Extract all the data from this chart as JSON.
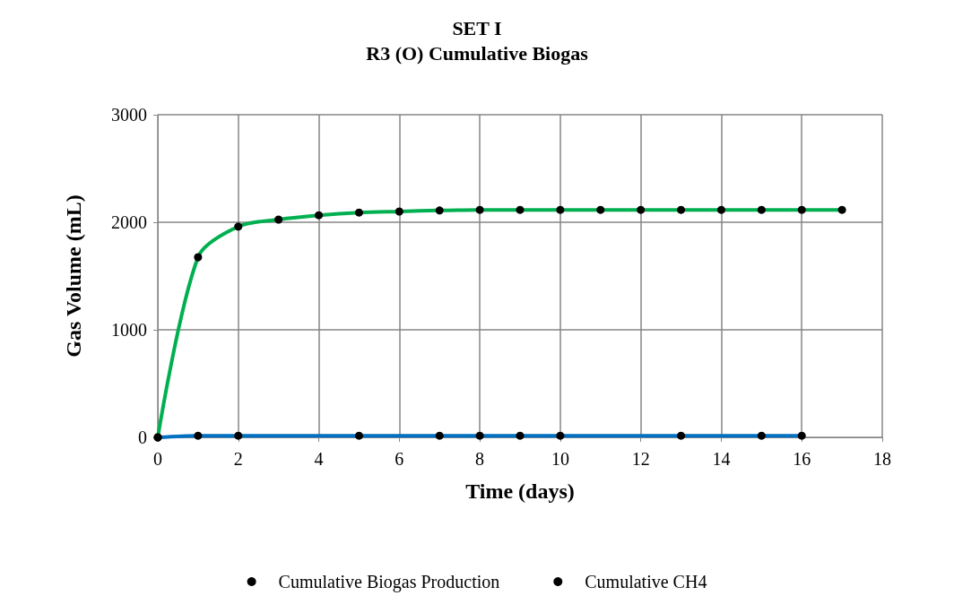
{
  "chart_data": {
    "type": "line",
    "title": "SET I\nR3 (O) Cumulative Biogas",
    "xlabel": "Time (days)",
    "ylabel": "Gas Volume (mL)",
    "xlim": [
      0,
      18
    ],
    "xticks": [
      0,
      2,
      4,
      6,
      8,
      10,
      12,
      14,
      16,
      18
    ],
    "ylim": [
      0,
      3000
    ],
    "yticks": [
      0,
      1000,
      2000,
      3000
    ],
    "grid": true,
    "legend": "bottom",
    "marker": "circle",
    "line_style": "solid",
    "series": [
      {
        "name": "Cumulative Biogas Production",
        "color": "#00b050",
        "x": [
          0,
          1,
          2,
          3,
          4,
          5,
          6,
          7,
          8,
          9,
          10,
          11,
          12,
          13,
          14,
          15,
          16,
          17
        ],
        "values": [
          0,
          1675,
          1960,
          2025,
          2065,
          2090,
          2100,
          2110,
          2115,
          2115,
          2115,
          2115,
          2115,
          2115,
          2115,
          2115,
          2115,
          2115
        ]
      },
      {
        "name": "Cumulative CH4",
        "color": "#0070c0",
        "x": [
          0,
          1,
          2,
          5,
          7,
          8,
          9,
          10,
          13,
          15,
          16
        ],
        "values": [
          0,
          15,
          15,
          15,
          15,
          15,
          15,
          15,
          15,
          15,
          15
        ]
      }
    ]
  }
}
